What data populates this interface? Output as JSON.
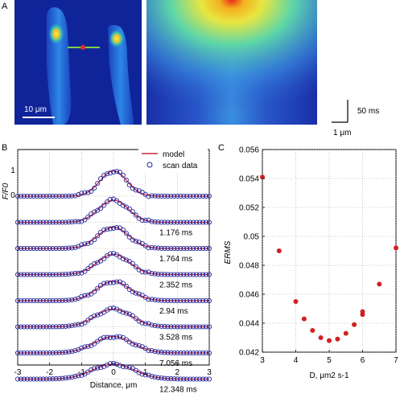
{
  "panel_labels": {
    "a": "A",
    "b": "B",
    "c": "C"
  },
  "panel_a": {
    "scale_bar_label": "10 μm",
    "time_bar_label": "50 ms",
    "distance_bar_label": "1 μm",
    "colors": {
      "background": "#10249a",
      "cell": "#1f6fd8",
      "hotspot": "#f4e23a",
      "line": "#7ad24a",
      "center_dot": "#e03020"
    }
  },
  "chart_data": [
    {
      "type": "line",
      "panel": "B",
      "ylabel": "F/F0",
      "xlabel": "Distance, μm",
      "xlim": [
        -3,
        3
      ],
      "x_ticks": [
        "-3",
        "-2",
        "-1",
        "0",
        "1",
        "2",
        "3"
      ],
      "y_ticks": [
        "0",
        "1"
      ],
      "grid": true,
      "legend": {
        "placement": "top-right",
        "entries": [
          "model",
          "scan data"
        ]
      },
      "series_colors": {
        "model": "#c8283a",
        "scan data": "#20249a"
      },
      "traces": [
        {
          "label": "",
          "amplitude": 1.05,
          "sigma": 0.42
        },
        {
          "label": "1.176 ms",
          "amplitude": 0.92,
          "sigma": 0.46
        },
        {
          "label": "1.764 ms",
          "amplitude": 0.88,
          "sigma": 0.48
        },
        {
          "label": "2.352 ms",
          "amplitude": 0.84,
          "sigma": 0.5
        },
        {
          "label": "2.94 ms",
          "amplitude": 0.8,
          "sigma": 0.52
        },
        {
          "label": "3.528 ms",
          "amplitude": 0.74,
          "sigma": 0.56
        },
        {
          "label": "7.056 ms",
          "amplitude": 0.68,
          "sigma": 0.6
        },
        {
          "label": "12.348 ms",
          "amplitude": 0.62,
          "sigma": 0.65
        }
      ]
    },
    {
      "type": "scatter",
      "panel": "C",
      "xlabel": "D, μm2 s-1",
      "ylabel": "ERMS",
      "xlim": [
        3,
        7
      ],
      "ylim": [
        0.042,
        0.056
      ],
      "x_ticks": [
        "3",
        "4",
        "5",
        "6",
        "7"
      ],
      "y_ticks": [
        "0.042",
        "0.044",
        "0.046",
        "0.048",
        "0.05",
        "0.052",
        "0.054",
        "0.056"
      ],
      "grid": true,
      "color": "#d42020",
      "points": [
        {
          "x": 3.0,
          "y": 0.0541
        },
        {
          "x": 3.5,
          "y": 0.049
        },
        {
          "x": 4.0,
          "y": 0.0455
        },
        {
          "x": 4.25,
          "y": 0.0443
        },
        {
          "x": 4.5,
          "y": 0.0435
        },
        {
          "x": 4.75,
          "y": 0.043
        },
        {
          "x": 5.0,
          "y": 0.0428
        },
        {
          "x": 5.25,
          "y": 0.0429
        },
        {
          "x": 5.5,
          "y": 0.0433
        },
        {
          "x": 5.75,
          "y": 0.0439
        },
        {
          "x": 6.0,
          "y": 0.0446
        },
        {
          "x": 6.0,
          "y": 0.0448
        },
        {
          "x": 6.5,
          "y": 0.0467
        },
        {
          "x": 7.0,
          "y": 0.0492
        }
      ]
    }
  ]
}
